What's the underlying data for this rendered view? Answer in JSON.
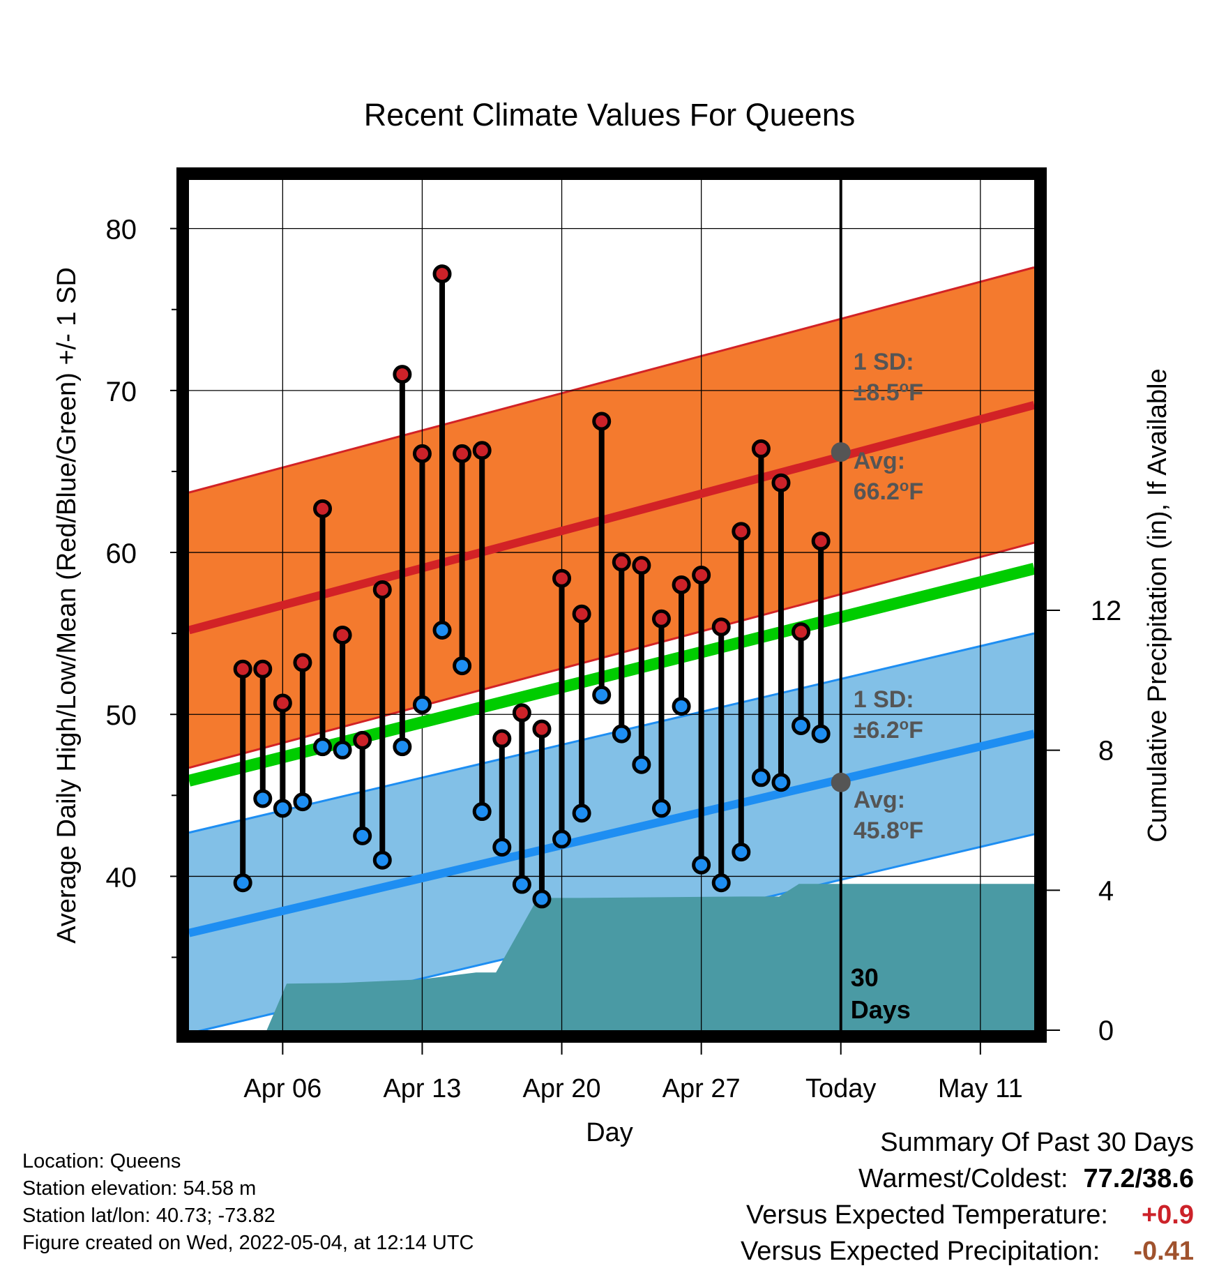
{
  "chart_data": {
    "type": "line",
    "title": "Recent Climate Values For Queens",
    "xlabel": "Day",
    "ylabel": "Average Daily High/Low/Mean (Red/Blue/Green) +/- 1 SD",
    "y2label": "Cumulative Precipitation (in), If Available",
    "x_ticks": [
      "Apr 06",
      "Apr 13",
      "Apr 20",
      "Apr 27",
      "Today",
      "May 11"
    ],
    "y_ticks": [
      "40",
      "50",
      "60",
      "70",
      "80"
    ],
    "y2_ticks": [
      "0",
      "4",
      "8",
      "12"
    ],
    "ylim": [
      30.5,
      83
    ],
    "y2lim": [
      0,
      24.3
    ],
    "x_range_days": [
      -32.7,
      9.7
    ],
    "today_marker_label": "30 Days",
    "avg_high": {
      "start": 55.2,
      "end": 69.1,
      "today": 66.2,
      "label": "Avg:",
      "value": "66.2oF"
    },
    "avg_low": {
      "start": 36.5,
      "end": 48.8,
      "today": 45.8,
      "label": "Avg:",
      "value": "45.8oF"
    },
    "avg_mean": {
      "start": 45.9,
      "end": 59.0
    },
    "sd_high": {
      "label": "1 SD:",
      "value": "±8.5oF",
      "sd": 8.5
    },
    "sd_low": {
      "label": "1 SD:",
      "value": "±6.2oF",
      "sd": 6.2
    },
    "daily": {
      "offsets": [
        -30,
        -29,
        -28,
        -27,
        -26,
        -25,
        -24,
        -23,
        -22,
        -21,
        -20,
        -19,
        -18,
        -17,
        -16,
        -15,
        -14,
        -13,
        -12,
        -11,
        -10,
        -9,
        -8,
        -7,
        -6,
        -5,
        -4,
        -3,
        -2,
        -1
      ],
      "highs": [
        52.8,
        52.8,
        50.7,
        53.2,
        62.7,
        54.9,
        48.4,
        57.7,
        71.0,
        66.1,
        77.2,
        66.1,
        66.3,
        48.5,
        50.1,
        49.1,
        58.4,
        56.2,
        68.1,
        59.4,
        59.2,
        55.9,
        58.0,
        58.6,
        55.4,
        61.3,
        66.4,
        64.3,
        55.1,
        60.7
      ],
      "lows": [
        39.6,
        44.8,
        44.2,
        44.6,
        48.0,
        47.8,
        42.5,
        41.0,
        48.0,
        50.6,
        55.2,
        53.0,
        44.0,
        41.8,
        39.5,
        38.6,
        42.3,
        43.9,
        51.2,
        48.8,
        46.9,
        44.2,
        50.5,
        40.7,
        39.6,
        41.5,
        46.1,
        45.8,
        49.3,
        48.8
      ]
    },
    "precip": {
      "offsets": [
        -32.4,
        -28.8,
        -27.8,
        -25.1,
        -21.1,
        -18.3,
        -17.3,
        -15.2,
        -13.1,
        -5.0,
        -3.1,
        -2.1,
        9.4
      ],
      "values": [
        0.0,
        0.0,
        1.33,
        1.35,
        1.45,
        1.65,
        1.65,
        3.78,
        3.78,
        3.82,
        3.82,
        4.18,
        4.18
      ]
    },
    "colors": {
      "high_band": "#f47a2e",
      "high_line": "#d22226",
      "low_band": "#82c0e7",
      "low_line": "#1e8ef2",
      "mean_line": "#00cc00",
      "precip": "#4a9aa4",
      "high_marker": "#cc2229",
      "low_marker": "#1e8ef2",
      "avg_marker": "#555555",
      "annotation_text": "#555555"
    }
  },
  "footer": {
    "location": "Location: Queens",
    "elevation": "Station elevation: 54.58 m",
    "latlon": "Station lat/lon: 40.73; -73.82",
    "created": "Figure created on Wed, 2022-05-04, at 12:14 UTC"
  },
  "summary": {
    "title": "Summary Of Past 30 Days",
    "warm_label": "Warmest/Coldest:",
    "warm_value": "77.2/38.6",
    "temp_label": "Versus Expected Temperature:",
    "temp_value": "+0.9",
    "precip_label": "Versus Expected Precipitation:",
    "precip_value": "-0.41",
    "temp_color": "#cc2229",
    "precip_color": "#a0522d"
  }
}
